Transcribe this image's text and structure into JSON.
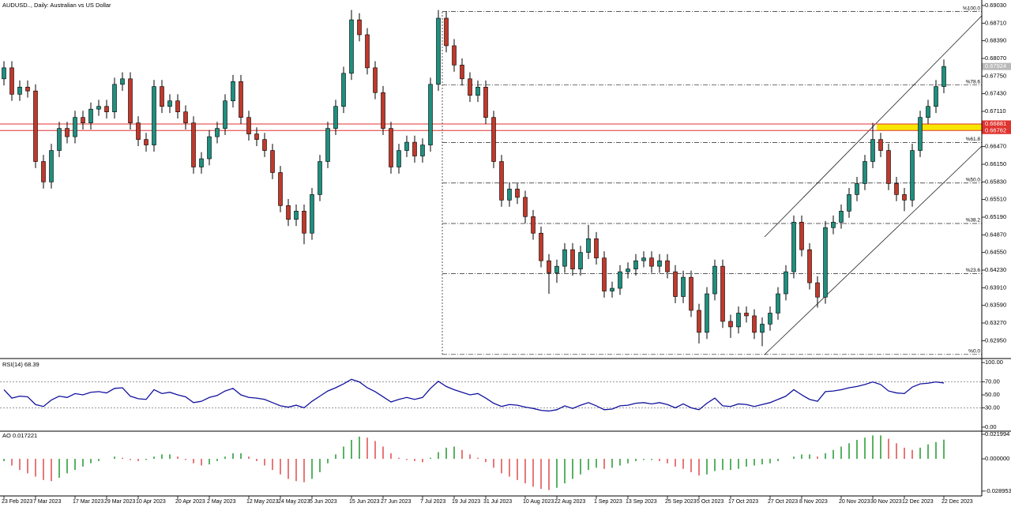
{
  "chart_data": [
    {
      "type": "candlestick",
      "title": "AUDUSD.., Daily: Australian vs US Dollar",
      "categories": [
        "23 Feb 2023",
        null,
        null,
        null,
        "7 Mar 2023",
        null,
        null,
        null,
        null,
        "17 Mar 2023",
        null,
        null,
        null,
        "29 Mar 2023",
        null,
        null,
        null,
        "10 Apr 2023",
        null,
        null,
        null,
        null,
        "20 Apr 2023",
        null,
        null,
        null,
        "2 May 2023",
        null,
        null,
        null,
        null,
        "12 May 2023",
        null,
        null,
        null,
        "24 May 2023",
        null,
        null,
        null,
        "5 Jun 2023",
        null,
        null,
        null,
        null,
        "15 Jun 2023",
        null,
        null,
        null,
        "27 Jun 2023",
        null,
        null,
        null,
        null,
        "7 Jul 2023",
        null,
        null,
        null,
        "19 Jul 2023",
        null,
        null,
        null,
        "31 Jul 2023",
        null,
        null,
        null,
        null,
        "10 Aug 2023",
        null,
        null,
        null,
        "22 Aug 2023",
        null,
        null,
        null,
        null,
        "1 Sep 2023",
        null,
        null,
        null,
        "13 Sep 2023",
        null,
        null,
        null,
        null,
        "25 Sep 2023",
        null,
        null,
        null,
        "5 Oct 2023",
        null,
        null,
        null,
        "17 Oct 2023",
        null,
        null,
        null,
        null,
        "27 Oct 2023",
        null,
        null,
        null,
        "8 Nov 2023",
        null,
        null,
        null,
        null,
        "20 Nov 2023",
        null,
        null,
        null,
        "30 Nov 2023",
        null,
        null,
        null,
        "12 Dec 2023",
        null,
        null,
        null,
        null,
        "22 Dec 2023"
      ],
      "open": [
        0.677,
        0.679,
        0.6742,
        0.6755,
        0.6748,
        0.662,
        0.6583,
        0.664,
        0.668,
        0.6665,
        0.67,
        0.669,
        0.6715,
        0.672,
        0.671,
        0.676,
        0.677,
        0.669,
        0.666,
        0.665,
        0.6756,
        0.672,
        0.673,
        0.671,
        0.669,
        0.661,
        0.6625,
        0.6665,
        0.668,
        0.673,
        0.6765,
        0.67,
        0.667,
        0.666,
        0.664,
        0.66,
        0.654,
        0.6515,
        0.653,
        0.649,
        0.656,
        0.662,
        0.668,
        0.672,
        0.678,
        0.6877,
        0.685,
        0.679,
        0.6745,
        0.668,
        0.661,
        0.664,
        0.6655,
        0.663,
        0.665,
        0.676,
        0.688,
        0.683,
        0.6795,
        0.677,
        0.674,
        0.6755,
        0.67,
        0.662,
        0.655,
        0.657,
        0.6555,
        0.652,
        0.649,
        0.644,
        0.6418,
        0.643,
        0.646,
        0.6425,
        0.6455,
        0.648,
        0.6445,
        0.6385,
        0.639,
        0.642,
        0.6425,
        0.644,
        0.6445,
        0.643,
        0.644,
        0.642,
        0.6375,
        0.641,
        0.635,
        0.631,
        0.638,
        0.643,
        0.633,
        0.632,
        0.6345,
        0.634,
        0.631,
        0.6325,
        0.6345,
        0.638,
        0.642,
        0.651,
        0.646,
        0.64,
        0.6374,
        0.65,
        0.651,
        0.653,
        0.656,
        0.658,
        0.662,
        0.666,
        0.664,
        0.658,
        0.656,
        0.655,
        0.664,
        0.67,
        0.672,
        0.6756
      ],
      "high": [
        0.6802,
        0.6802,
        0.6767,
        0.6767,
        0.676,
        0.6632,
        0.6652,
        0.6692,
        0.6692,
        0.6712,
        0.6712,
        0.6727,
        0.6732,
        0.6732,
        0.6772,
        0.6782,
        0.6782,
        0.6702,
        0.6672,
        0.6768,
        0.6768,
        0.6742,
        0.6742,
        0.6722,
        0.6702,
        0.6637,
        0.6677,
        0.6692,
        0.6742,
        0.6777,
        0.6777,
        0.6712,
        0.6682,
        0.6672,
        0.6652,
        0.6612,
        0.6552,
        0.6542,
        0.6542,
        0.6572,
        0.6632,
        0.6692,
        0.6732,
        0.6792,
        0.6895,
        0.6889,
        0.6862,
        0.6802,
        0.6757,
        0.6692,
        0.6652,
        0.6667,
        0.6667,
        0.6662,
        0.6772,
        0.6895,
        0.6892,
        0.6842,
        0.6807,
        0.6782,
        0.6767,
        0.6767,
        0.6712,
        0.6632,
        0.6582,
        0.6582,
        0.6567,
        0.6532,
        0.6502,
        0.6452,
        0.6442,
        0.6472,
        0.6472,
        0.6467,
        0.6505,
        0.6492,
        0.6457,
        0.6402,
        0.6432,
        0.6437,
        0.6452,
        0.6457,
        0.6457,
        0.6452,
        0.6452,
        0.6432,
        0.6422,
        0.6422,
        0.6362,
        0.6392,
        0.6442,
        0.6442,
        0.6342,
        0.6357,
        0.6357,
        0.6352,
        0.6337,
        0.6357,
        0.6392,
        0.6432,
        0.6522,
        0.6522,
        0.6472,
        0.6412,
        0.6512,
        0.6522,
        0.6542,
        0.6572,
        0.6592,
        0.6632,
        0.669,
        0.6672,
        0.6652,
        0.6592,
        0.6572,
        0.6652,
        0.6712,
        0.6732,
        0.6768,
        0.6805
      ],
      "low": [
        0.6758,
        0.673,
        0.673,
        0.6736,
        0.6608,
        0.6571,
        0.6571,
        0.6628,
        0.6653,
        0.6653,
        0.6678,
        0.6678,
        0.6703,
        0.6698,
        0.6698,
        0.6748,
        0.6678,
        0.6648,
        0.6638,
        0.6638,
        0.6708,
        0.6708,
        0.6698,
        0.6678,
        0.6598,
        0.6598,
        0.6613,
        0.6653,
        0.6668,
        0.6718,
        0.6688,
        0.6658,
        0.6648,
        0.6628,
        0.6588,
        0.6528,
        0.6503,
        0.6503,
        0.647,
        0.6478,
        0.6548,
        0.6608,
        0.6668,
        0.6708,
        0.6768,
        0.6838,
        0.6778,
        0.6733,
        0.6668,
        0.6598,
        0.6598,
        0.6628,
        0.6618,
        0.6618,
        0.6638,
        0.6748,
        0.6818,
        0.6783,
        0.6758,
        0.6728,
        0.6728,
        0.6688,
        0.6608,
        0.6538,
        0.6538,
        0.6543,
        0.6508,
        0.6478,
        0.6428,
        0.638,
        0.64,
        0.6418,
        0.6413,
        0.6413,
        0.6443,
        0.6433,
        0.6373,
        0.6373,
        0.6378,
        0.6408,
        0.6413,
        0.6428,
        0.6418,
        0.6418,
        0.6408,
        0.6363,
        0.6363,
        0.6338,
        0.629,
        0.6298,
        0.6368,
        0.6318,
        0.63,
        0.6308,
        0.6328,
        0.6298,
        0.6285,
        0.6313,
        0.6333,
        0.6368,
        0.6408,
        0.6448,
        0.6388,
        0.6355,
        0.6362,
        0.6488,
        0.6498,
        0.6518,
        0.6548,
        0.6568,
        0.6608,
        0.6628,
        0.6568,
        0.6548,
        0.653,
        0.6538,
        0.6628,
        0.6688,
        0.6708,
        0.6744
      ],
      "close": [
        0.679,
        0.6742,
        0.6755,
        0.6748,
        0.662,
        0.6583,
        0.664,
        0.668,
        0.6665,
        0.67,
        0.669,
        0.6715,
        0.672,
        0.671,
        0.676,
        0.677,
        0.669,
        0.666,
        0.665,
        0.6756,
        0.672,
        0.673,
        0.671,
        0.669,
        0.661,
        0.6625,
        0.6665,
        0.668,
        0.673,
        0.6765,
        0.67,
        0.667,
        0.666,
        0.664,
        0.66,
        0.654,
        0.6515,
        0.653,
        0.649,
        0.656,
        0.662,
        0.668,
        0.672,
        0.678,
        0.6877,
        0.685,
        0.679,
        0.6745,
        0.668,
        0.661,
        0.664,
        0.6655,
        0.663,
        0.665,
        0.676,
        0.688,
        0.683,
        0.6795,
        0.677,
        0.674,
        0.6755,
        0.67,
        0.662,
        0.655,
        0.657,
        0.6555,
        0.652,
        0.649,
        0.644,
        0.6418,
        0.643,
        0.646,
        0.6425,
        0.6455,
        0.648,
        0.6445,
        0.6385,
        0.639,
        0.642,
        0.6425,
        0.644,
        0.6445,
        0.643,
        0.644,
        0.642,
        0.6375,
        0.641,
        0.635,
        0.631,
        0.638,
        0.643,
        0.633,
        0.632,
        0.6345,
        0.634,
        0.631,
        0.6325,
        0.6345,
        0.638,
        0.642,
        0.651,
        0.646,
        0.64,
        0.6374,
        0.65,
        0.651,
        0.653,
        0.656,
        0.658,
        0.662,
        0.666,
        0.664,
        0.658,
        0.656,
        0.655,
        0.664,
        0.67,
        0.672,
        0.6756,
        0.67924
      ],
      "up_color": "#1f8f7f",
      "down_color": "#c0392b",
      "ylim": [
        0.6264,
        0.6913
      ],
      "yticks": [
        {
          "value": 0.6903,
          "label": "0.69030"
        },
        {
          "value": 0.6871,
          "label": "0.68710"
        },
        {
          "value": 0.6839,
          "label": "0.68390"
        },
        {
          "value": 0.6807,
          "label": "0.68070"
        },
        {
          "value": 0.6775,
          "label": "0.67750"
        },
        {
          "value": 0.6743,
          "label": "0.67430"
        },
        {
          "value": 0.6711,
          "label": "0.67110"
        },
        {
          "value": 0.6647,
          "label": "0.66470"
        },
        {
          "value": 0.6615,
          "label": "0.66150"
        },
        {
          "value": 0.6583,
          "label": "0.65830"
        },
        {
          "value": 0.6551,
          "label": "0.65510"
        },
        {
          "value": 0.6519,
          "label": "0.65190"
        },
        {
          "value": 0.6487,
          "label": "0.64870"
        },
        {
          "value": 0.6455,
          "label": "0.64550"
        },
        {
          "value": 0.6423,
          "label": "0.64230"
        },
        {
          "value": 0.6391,
          "label": "0.63910"
        },
        {
          "value": 0.6359,
          "label": "0.63590"
        },
        {
          "value": 0.6327,
          "label": "0.63270"
        },
        {
          "value": 0.6295,
          "label": "0.62950"
        }
      ],
      "fib_levels": [
        {
          "value": 0.6892,
          "label": "%100.0"
        },
        {
          "value": 0.67589,
          "label": "%78.6"
        },
        {
          "value": 0.66544,
          "label": "%61.8"
        },
        {
          "value": 0.6581,
          "label": "%50.0"
        },
        {
          "value": 0.65076,
          "label": "%38.2"
        },
        {
          "value": 0.64168,
          "label": "%23.6"
        },
        {
          "value": 0.627,
          "label": "%0.0"
        }
      ],
      "hlines": [
        {
          "value": 0.66881,
          "label": "0.66881",
          "color": "#e0342f"
        },
        {
          "value": 0.66762,
          "label": "0.66762",
          "color": "#e0342f"
        }
      ],
      "last_price": {
        "value": 0.67924,
        "label": "0.67924",
        "color": "#b9b9b9"
      }
    },
    {
      "type": "line",
      "title": "RSI(14) 68.39",
      "color": "#12129e",
      "values": [
        58,
        45,
        48,
        47,
        35,
        32,
        42,
        48,
        46,
        52,
        50,
        54,
        55,
        53,
        60,
        61,
        48,
        44,
        43,
        58,
        52,
        54,
        50,
        47,
        38,
        40,
        46,
        49,
        56,
        60,
        50,
        46,
        45,
        43,
        38,
        33,
        31,
        34,
        30,
        40,
        48,
        56,
        61,
        67,
        74,
        70,
        61,
        55,
        47,
        39,
        43,
        46,
        43,
        46,
        60,
        71,
        63,
        58,
        54,
        50,
        52,
        45,
        37,
        32,
        35,
        34,
        31,
        29,
        26,
        25,
        27,
        33,
        29,
        34,
        38,
        33,
        27,
        28,
        33,
        34,
        37,
        38,
        36,
        38,
        35,
        30,
        36,
        30,
        27,
        37,
        45,
        33,
        32,
        36,
        35,
        32,
        35,
        38,
        43,
        48,
        58,
        50,
        43,
        40,
        55,
        56,
        58,
        61,
        63,
        66,
        70,
        66,
        56,
        53,
        52,
        62,
        67,
        68,
        70,
        68.39
      ],
      "ylim": [
        -5,
        105
      ],
      "yticks": [
        {
          "value": 100,
          "label": "100.00"
        },
        {
          "value": 70,
          "label": "70.00"
        },
        {
          "value": 50,
          "label": "50.00"
        },
        {
          "value": 30,
          "label": "30.00"
        },
        {
          "value": 0,
          "label": "0.00"
        }
      ],
      "levels": [
        70,
        30
      ]
    },
    {
      "type": "histogram",
      "title": "AO 0.017221",
      "up_color": "#2e9e3a",
      "down_color": "#e35656",
      "values": [
        -0.002,
        -0.006,
        -0.01,
        -0.013,
        -0.016,
        -0.019,
        -0.02,
        -0.017,
        -0.013,
        -0.01,
        -0.007,
        -0.004,
        -0.002,
        0,
        0.002,
        0.001,
        -0.001,
        -0.002,
        -0.001,
        0.002,
        0.004,
        0.004,
        0.002,
        -0.001,
        -0.004,
        -0.006,
        -0.005,
        -0.002,
        0.002,
        0.005,
        0.005,
        0.002,
        -0.002,
        -0.006,
        -0.01,
        -0.014,
        -0.018,
        -0.02,
        -0.021,
        -0.018,
        -0.012,
        -0.004,
        0.004,
        0.011,
        0.017,
        0.02,
        0.019,
        0.016,
        0.011,
        0.005,
        0.001,
        -0.001,
        -0.002,
        -0.003,
        0.001,
        0.006,
        0.01,
        0.011,
        0.008,
        0.004,
        0.001,
        -0.003,
        -0.008,
        -0.013,
        -0.016,
        -0.019,
        -0.022,
        -0.025,
        -0.027,
        -0.028,
        -0.026,
        -0.022,
        -0.018,
        -0.014,
        -0.01,
        -0.008,
        -0.009,
        -0.008,
        -0.006,
        -0.004,
        -0.002,
        -0.001,
        -0.001,
        -0.002,
        -0.004,
        -0.007,
        -0.009,
        -0.012,
        -0.015,
        -0.014,
        -0.011,
        -0.01,
        -0.01,
        -0.009,
        -0.007,
        -0.006,
        -0.005,
        -0.004,
        -0.002,
        0,
        0.002,
        0.004,
        0.004,
        0.002,
        0.005,
        0.008,
        0.011,
        0.014,
        0.017,
        0.019,
        0.021,
        0.021,
        0.018,
        0.014,
        0.01,
        0.008,
        0.01,
        0.013,
        0.015,
        0.017221
      ],
      "ylim": [
        -0.0326,
        0.0241
      ],
      "yticks": [
        0.021994,
        {
          "value": 0,
          "label": "0.000000"
        },
        -0.028953
      ]
    }
  ]
}
